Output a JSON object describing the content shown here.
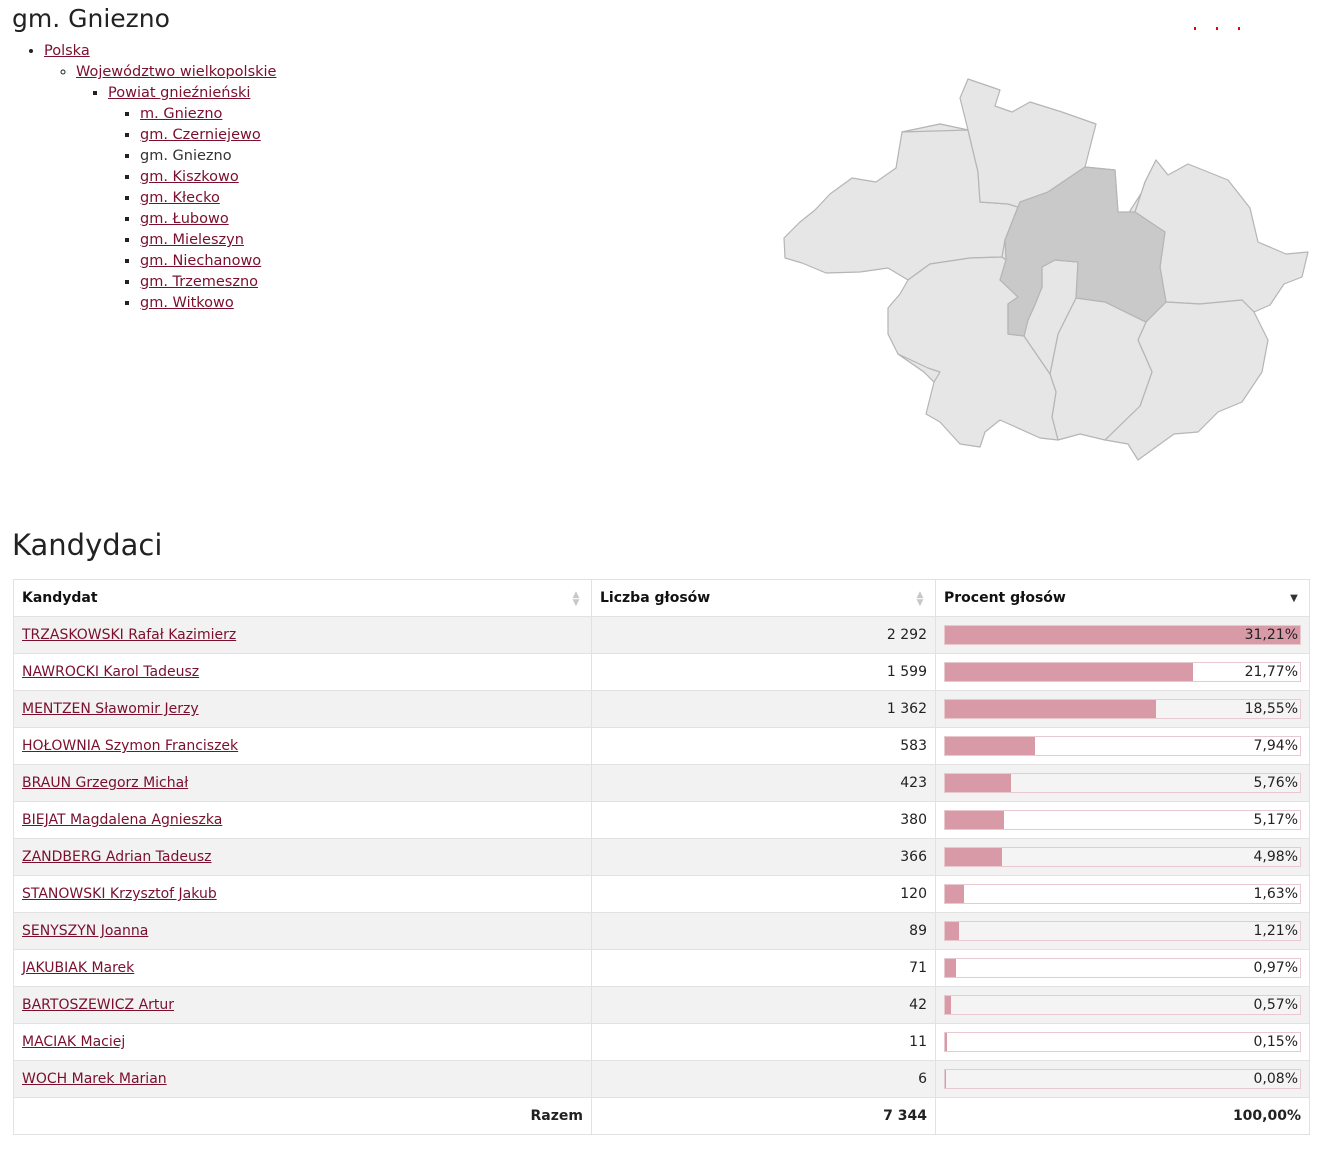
{
  "page": {
    "title": "gm. Gniezno"
  },
  "breadcrumb": {
    "country": "Polska",
    "voivodeship": "Województwo wielkopolskie",
    "county": "Powiat gnieźnieński",
    "municipalities": [
      {
        "label": "m. Gniezno",
        "current": false
      },
      {
        "label": "gm. Czerniejewo",
        "current": false
      },
      {
        "label": "gm. Gniezno",
        "current": true
      },
      {
        "label": "gm. Kiszkowo",
        "current": false
      },
      {
        "label": "gm. Kłecko",
        "current": false
      },
      {
        "label": "gm. Łubowo",
        "current": false
      },
      {
        "label": "gm. Mieleszyn",
        "current": false
      },
      {
        "label": "gm. Niechanowo",
        "current": false
      },
      {
        "label": "gm. Trzemeszno",
        "current": false
      },
      {
        "label": "gm. Witkowo",
        "current": false
      }
    ]
  },
  "map": {
    "fill_default": "#e6e6e6",
    "fill_selected": "#c9c9c9",
    "stroke": "#b5b5b5"
  },
  "candidates_section": {
    "title": "Kandydaci",
    "columns": [
      "Kandydat",
      "Liczba głosów",
      "Procent głosów"
    ],
    "bar_color": "#d99aa8",
    "rows": [
      {
        "name": "TRZASKOWSKI Rafał Kazimierz",
        "votes": "2 292",
        "percent": "31,21%",
        "share": 0.3121
      },
      {
        "name": "NAWROCKI Karol Tadeusz",
        "votes": "1 599",
        "percent": "21,77%",
        "share": 0.2177
      },
      {
        "name": "MENTZEN Sławomir Jerzy",
        "votes": "1 362",
        "percent": "18,55%",
        "share": 0.1855
      },
      {
        "name": "HOŁOWNIA Szymon Franciszek",
        "votes": "583",
        "percent": "7,94%",
        "share": 0.0794
      },
      {
        "name": "BRAUN Grzegorz Michał",
        "votes": "423",
        "percent": "5,76%",
        "share": 0.0576
      },
      {
        "name": "BIEJAT Magdalena Agnieszka",
        "votes": "380",
        "percent": "5,17%",
        "share": 0.0517
      },
      {
        "name": "ZANDBERG Adrian Tadeusz",
        "votes": "366",
        "percent": "4,98%",
        "share": 0.0498
      },
      {
        "name": "STANOWSKI Krzysztof Jakub",
        "votes": "120",
        "percent": "1,63%",
        "share": 0.0163
      },
      {
        "name": "SENYSZYN Joanna",
        "votes": "89",
        "percent": "1,21%",
        "share": 0.0121
      },
      {
        "name": "JAKUBIAK Marek",
        "votes": "71",
        "percent": "0,97%",
        "share": 0.0097
      },
      {
        "name": "BARTOSZEWICZ Artur",
        "votes": "42",
        "percent": "0,57%",
        "share": 0.0057
      },
      {
        "name": "MACIAK Maciej",
        "votes": "11",
        "percent": "0,15%",
        "share": 0.0015
      },
      {
        "name": "WOCH Marek Marian",
        "votes": "6",
        "percent": "0,08%",
        "share": 0.0008
      }
    ],
    "footer": {
      "label": "Razem",
      "total_votes": "7 344",
      "total_percent": "100,00%"
    }
  }
}
